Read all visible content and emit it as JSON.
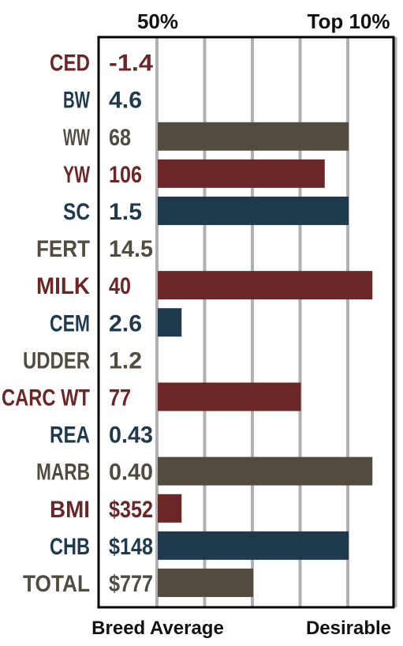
{
  "chart_data": {
    "type": "bar",
    "orientation": "horizontal",
    "top_labels": {
      "left": "50%",
      "right": "Top 10%"
    },
    "bottom_labels": {
      "left": "Breed Average",
      "right": "Desirable"
    },
    "xlim": [
      0,
      5
    ],
    "grid": true,
    "colors": {
      "red": "#6b2628",
      "blue": "#1f3a4c",
      "gray": "#524c40"
    },
    "rows": [
      {
        "trait": "CED",
        "epd": "-1.4",
        "bar": 0,
        "color": "red"
      },
      {
        "trait": "BW",
        "epd": "4.6",
        "bar": 0,
        "color": "blue"
      },
      {
        "trait": "WW",
        "epd": "68",
        "bar": 4,
        "color": "gray"
      },
      {
        "trait": "YW",
        "epd": "106",
        "bar": 3.5,
        "color": "red"
      },
      {
        "trait": "SC",
        "epd": "1.5",
        "bar": 4,
        "color": "blue"
      },
      {
        "trait": "FERT",
        "epd": "14.5",
        "bar": 0,
        "color": "gray"
      },
      {
        "trait": "MILK",
        "epd": "40",
        "bar": 4.5,
        "color": "red"
      },
      {
        "trait": "CEM",
        "epd": "2.6",
        "bar": 0.5,
        "color": "blue"
      },
      {
        "trait": "UDDER",
        "epd": "1.2",
        "bar": 0,
        "color": "gray"
      },
      {
        "trait": "CARC WT",
        "epd": "77",
        "bar": 3,
        "color": "red"
      },
      {
        "trait": "REA",
        "epd": "0.43",
        "bar": 0,
        "color": "blue"
      },
      {
        "trait": "MARB",
        "epd": "0.40",
        "bar": 4.5,
        "color": "gray"
      },
      {
        "trait": "BMI",
        "epd": "$352",
        "bar": 0.5,
        "color": "red"
      },
      {
        "trait": "CHB",
        "epd": "$148",
        "bar": 4,
        "color": "blue"
      },
      {
        "trait": "TOTAL",
        "epd": "$777",
        "bar": 2,
        "color": "gray"
      }
    ]
  }
}
